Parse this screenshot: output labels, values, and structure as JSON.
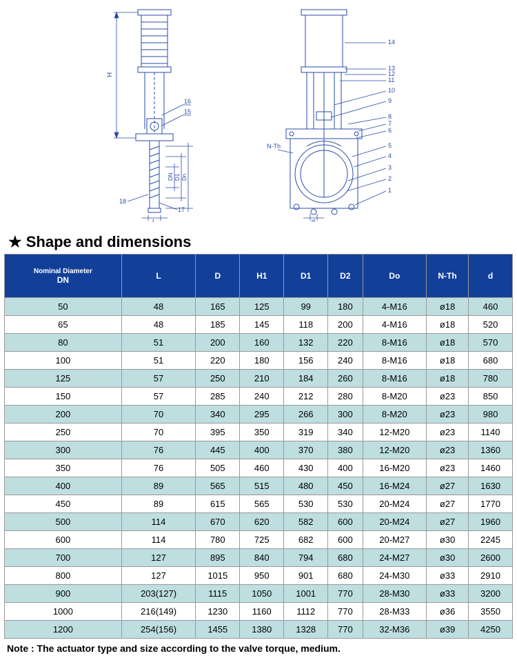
{
  "section_title": "Shape and dimensions",
  "note_text": "Note : The actuator type and size according to the valve torque, medium.",
  "diagram_labels": {
    "left": {
      "dim_H": "H",
      "dim_Dn": "Dn",
      "dim_D1": "D1",
      "dim_DN": "DN",
      "dim_L": "L",
      "c15": "15",
      "c16": "16",
      "c17": "17",
      "c18": "18"
    },
    "right": {
      "nth": "N-Th",
      "dim_d": "d",
      "c1": "1",
      "c2": "2",
      "c3": "3",
      "c4": "4",
      "c5": "5",
      "c6": "6",
      "c7": "7",
      "c8": "8",
      "c9": "9",
      "c10": "10",
      "c11": "11",
      "c12": "12",
      "c13": "13",
      "c14": "14"
    }
  },
  "table": {
    "header_bg": "#124099",
    "alt_row_bg": "#bedee0",
    "columns": [
      "Nominal Diameter DN",
      "L",
      "D",
      "H1",
      "D1",
      "D2",
      "Do",
      "N-Th",
      "d"
    ],
    "rows": [
      [
        "50",
        "48",
        "165",
        "125",
        "99",
        "180",
        "4-M16",
        "ø18",
        "460"
      ],
      [
        "65",
        "48",
        "185",
        "145",
        "118",
        "200",
        "4-M16",
        "ø18",
        "520"
      ],
      [
        "80",
        "51",
        "200",
        "160",
        "132",
        "220",
        "8-M16",
        "ø18",
        "570"
      ],
      [
        "100",
        "51",
        "220",
        "180",
        "156",
        "240",
        "8-M16",
        "ø18",
        "680"
      ],
      [
        "125",
        "57",
        "250",
        "210",
        "184",
        "260",
        "8-M16",
        "ø18",
        "780"
      ],
      [
        "150",
        "57",
        "285",
        "240",
        "212",
        "280",
        "8-M20",
        "ø23",
        "850"
      ],
      [
        "200",
        "70",
        "340",
        "295",
        "266",
        "300",
        "8-M20",
        "ø23",
        "980"
      ],
      [
        "250",
        "70",
        "395",
        "350",
        "319",
        "340",
        "12-M20",
        "ø23",
        "1140"
      ],
      [
        "300",
        "76",
        "445",
        "400",
        "370",
        "380",
        "12-M20",
        "ø23",
        "1360"
      ],
      [
        "350",
        "76",
        "505",
        "460",
        "430",
        "400",
        "16-M20",
        "ø23",
        "1460"
      ],
      [
        "400",
        "89",
        "565",
        "515",
        "480",
        "450",
        "16-M24",
        "ø27",
        "1630"
      ],
      [
        "450",
        "89",
        "615",
        "565",
        "530",
        "530",
        "20-M24",
        "ø27",
        "1770"
      ],
      [
        "500",
        "114",
        "670",
        "620",
        "582",
        "600",
        "20-M24",
        "ø27",
        "1960"
      ],
      [
        "600",
        "114",
        "780",
        "725",
        "682",
        "600",
        "20-M27",
        "ø30",
        "2245"
      ],
      [
        "700",
        "127",
        "895",
        "840",
        "794",
        "680",
        "24-M27",
        "ø30",
        "2600"
      ],
      [
        "800",
        "127",
        "1015",
        "950",
        "901",
        "680",
        "24-M30",
        "ø33",
        "2910"
      ],
      [
        "900",
        "203(127)",
        "1115",
        "1050",
        "1001",
        "770",
        "28-M30",
        "ø33",
        "3200"
      ],
      [
        "1000",
        "216(149)",
        "1230",
        "1160",
        "1112",
        "770",
        "28-M33",
        "ø36",
        "3550"
      ],
      [
        "1200",
        "254(156)",
        "1455",
        "1380",
        "1328",
        "770",
        "32-M36",
        "ø39",
        "4250"
      ]
    ]
  }
}
